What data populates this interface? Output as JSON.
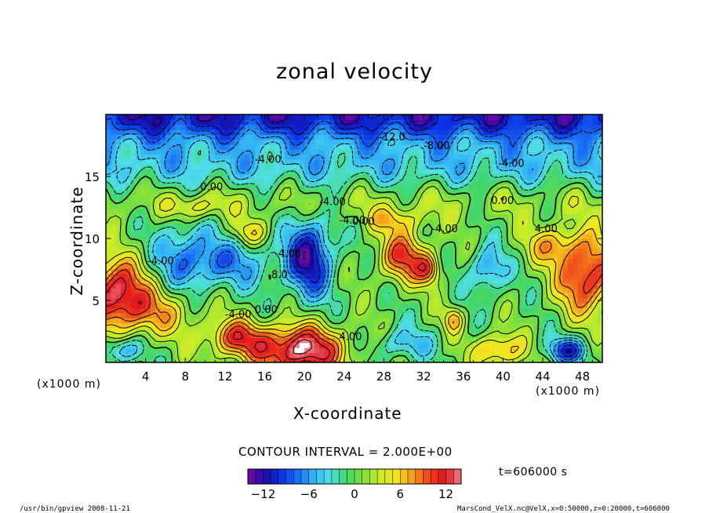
{
  "chart_data": {
    "type": "heatmap",
    "title": "zonal velocity",
    "xlabel": "X-coordinate",
    "ylabel": "Z-coordinate",
    "x_unit": "(x1000 m)",
    "y_unit": "(x1000 m)",
    "xlim": [
      0,
      50
    ],
    "ylim": [
      0,
      20
    ],
    "x_ticks": [
      4,
      8,
      12,
      16,
      20,
      24,
      28,
      32,
      36,
      40,
      44,
      48
    ],
    "y_ticks": [
      5,
      10,
      15
    ],
    "contour_interval_text": "CONTOUR INTERVAL = 2.000E+00",
    "time_text": "t=606000 s",
    "colorbar": {
      "min": -14,
      "max": 14,
      "ticks": [
        -12,
        -6,
        0,
        6,
        12
      ],
      "colors": [
        "#7a0aa8",
        "#1b0aa6",
        "#0a2fe0",
        "#1a6cf5",
        "#32b4f5",
        "#4fe0e8",
        "#3ed66a",
        "#7ee03a",
        "#c8ec2a",
        "#f5e41c",
        "#f5a01c",
        "#f0461c",
        "#e0141e",
        "#f07e88"
      ]
    },
    "contour_labels": [
      {
        "text": "-12.0",
        "x": 27.5,
        "y": 17.9
      },
      {
        "text": "-8.00",
        "x": 32.0,
        "y": 17.2
      },
      {
        "text": "-4.00",
        "x": 15.0,
        "y": 16.1
      },
      {
        "text": "-4.00",
        "x": 39.5,
        "y": 15.8
      },
      {
        "text": "0.00",
        "x": 9.5,
        "y": 13.9
      },
      {
        "text": "-4.00",
        "x": 21.5,
        "y": 12.7
      },
      {
        "text": "0.00",
        "x": 38.8,
        "y": 12.8
      },
      {
        "text": "-4.00",
        "x": 23.5,
        "y": 11.2
      },
      {
        "text": "0.00",
        "x": 24.8,
        "y": 11.1
      },
      {
        "text": "-4.00",
        "x": 32.8,
        "y": 10.5
      },
      {
        "text": "4.00",
        "x": 43.2,
        "y": 10.5
      },
      {
        "text": "-4.00",
        "x": 4.2,
        "y": 7.9
      },
      {
        "text": "-4.00",
        "x": 17.0,
        "y": 8.5
      },
      {
        "text": "-4.00",
        "x": 12.0,
        "y": 3.6
      },
      {
        "text": "0.00",
        "x": 15.0,
        "y": 4.0
      },
      {
        "text": "4.00",
        "x": 23.5,
        "y": 1.8
      },
      {
        "text": "-8.0",
        "x": 16.3,
        "y": 6.8
      }
    ]
  },
  "footer": {
    "left": "/usr/bin/gpview   2008-11-21",
    "right": "MarsCond_VelX.nc@VelX,x=0:50000,z=0:20000,t=606000"
  }
}
